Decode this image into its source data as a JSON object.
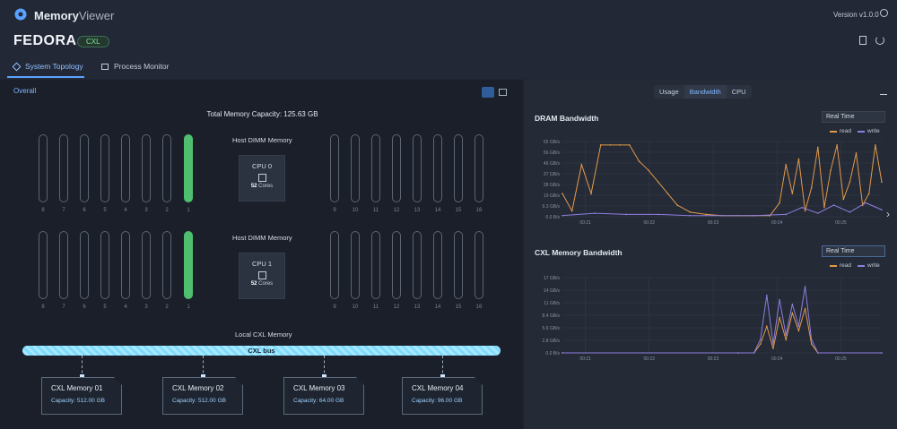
{
  "app": {
    "name_bold": "Memory",
    "name_light": "Viewer",
    "version": "Version v1.0.0"
  },
  "host": {
    "name": "FEDORA",
    "badge": "CXL"
  },
  "tabs": [
    {
      "label": "System Topology",
      "active": true
    },
    {
      "label": "Process Monitor",
      "active": false
    }
  ],
  "left": {
    "section_label": "Overall",
    "total_capacity": "Total Memory Capacity: 125.63 GB",
    "host_dimm_label": "Host DIMM Memory",
    "dimm_slots_left": [
      "8",
      "7",
      "6",
      "5",
      "4",
      "3",
      "2",
      "1"
    ],
    "dimm_slots_right": [
      "9",
      "10",
      "11",
      "12",
      "13",
      "14",
      "15",
      "16"
    ],
    "cpus": [
      {
        "name": "CPU 0",
        "cores_num": "52",
        "cores_label": "Cores"
      },
      {
        "name": "CPU 1",
        "cores_num": "52",
        "cores_label": "Cores"
      }
    ],
    "local_cxl_label": "Local CXL Memory",
    "cxl_bus_label": "CXL bus",
    "cxl_devices": [
      {
        "name": "CXL Memory 01",
        "capacity": "Capacity: 512.00 GB"
      },
      {
        "name": "CXL Memory 02",
        "capacity": "Capacity: 512.00 GB"
      },
      {
        "name": "CXL Memory 03",
        "capacity": "Capacity: 64.00 GB"
      },
      {
        "name": "CXL Memory 04",
        "capacity": "Capacity: 96.00 GB"
      }
    ]
  },
  "right": {
    "segments": [
      {
        "label": "Usage"
      },
      {
        "label": "Bandwidth",
        "selected": true
      },
      {
        "label": "CPU"
      }
    ],
    "dram": {
      "title": "DRAM Bandwidth",
      "mode": "Real Time"
    },
    "cxl": {
      "title": "CXL Memory Bandwidth",
      "mode": "Real Time"
    },
    "legend": {
      "read": "read",
      "write": "write"
    }
  },
  "colors": {
    "read": "#e39a4a",
    "write": "#8f7fe0",
    "accent": "#5aa2ff",
    "dimm_on": "#4fbf6f",
    "cxl_bus": "#7fdcff"
  },
  "chart_data": [
    {
      "type": "line",
      "title": "DRAM Bandwidth",
      "x_ticks": [
        "00:21",
        "00:22",
        "00:23",
        "00:24",
        "00:25"
      ],
      "y_ticks": [
        "0.0 B/s",
        "9.3 GB/s",
        "19 GB/s",
        "28 GB/s",
        "37 GB/s",
        "46 GB/s",
        "56 GB/s",
        "65 GB/s"
      ],
      "ylim": [
        0,
        65
      ],
      "series": [
        {
          "name": "read",
          "x": [
            0,
            0.03,
            0.06,
            0.09,
            0.12,
            0.15,
            0.18,
            0.21,
            0.24,
            0.27,
            0.3,
            0.33,
            0.36,
            0.4,
            0.45,
            0.5,
            0.55,
            0.6,
            0.65,
            0.68,
            0.7,
            0.72,
            0.74,
            0.76,
            0.78,
            0.8,
            0.82,
            0.84,
            0.86,
            0.88,
            0.9,
            0.92,
            0.94,
            0.96,
            0.98,
            1.0
          ],
          "values": [
            20,
            5,
            45,
            20,
            62,
            62,
            62,
            62,
            48,
            40,
            30,
            20,
            10,
            4,
            2,
            1,
            1,
            1,
            1,
            12,
            45,
            20,
            50,
            5,
            25,
            60,
            8,
            40,
            62,
            15,
            30,
            55,
            10,
            20,
            62,
            30
          ]
        },
        {
          "name": "write",
          "x": [
            0,
            0.1,
            0.2,
            0.3,
            0.4,
            0.5,
            0.6,
            0.7,
            0.75,
            0.8,
            0.85,
            0.9,
            0.95,
            1.0
          ],
          "values": [
            1,
            3,
            2,
            2,
            1,
            1,
            1,
            2,
            8,
            3,
            10,
            4,
            12,
            6
          ]
        }
      ]
    },
    {
      "type": "line",
      "title": "CXL Memory Bandwidth",
      "x_ticks": [
        "00:21",
        "00:22",
        "00:23",
        "00:24",
        "00:25"
      ],
      "y_ticks": [
        "0.0 B/s",
        "2.8 GB/s",
        "5.6 GB/s",
        "8.4 GB/s",
        "11 GB/s",
        "14 GB/s",
        "17 GB/s"
      ],
      "ylim": [
        0,
        17
      ],
      "series": [
        {
          "name": "read",
          "x": [
            0,
            0.55,
            0.6,
            0.62,
            0.64,
            0.66,
            0.68,
            0.7,
            0.72,
            0.74,
            0.76,
            0.78,
            0.8,
            1.0
          ],
          "values": [
            0,
            0,
            0,
            2,
            6,
            1,
            8,
            3,
            9,
            5,
            10,
            2,
            0,
            0
          ]
        },
        {
          "name": "write",
          "x": [
            0,
            0.55,
            0.6,
            0.62,
            0.64,
            0.66,
            0.68,
            0.7,
            0.72,
            0.74,
            0.76,
            0.78,
            0.8,
            1.0
          ],
          "values": [
            0,
            0,
            0,
            3,
            13,
            2,
            12,
            4,
            11,
            6,
            15,
            3,
            0,
            0
          ]
        }
      ]
    }
  ]
}
